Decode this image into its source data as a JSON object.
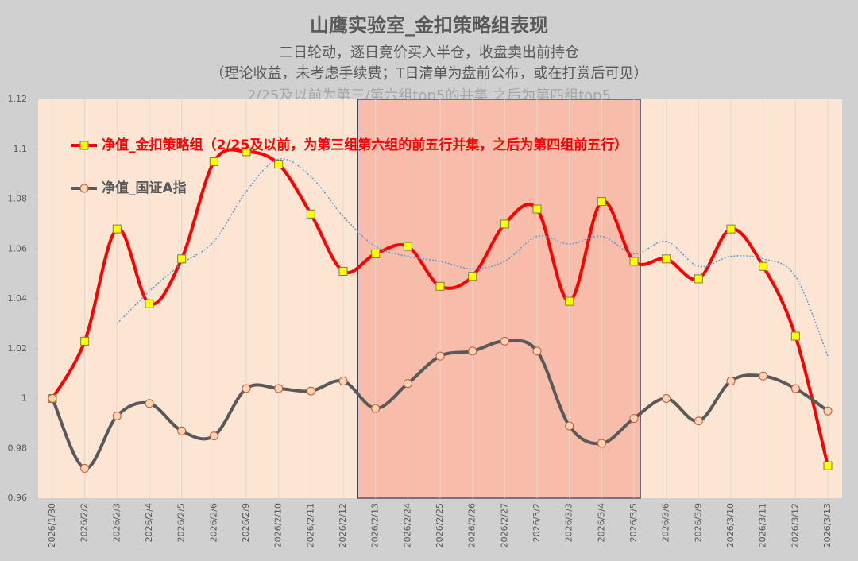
{
  "chart_data": {
    "type": "line",
    "title": "山鹰实验室_金扣策略组表现",
    "subtitle": [
      "二日轮动，逐日竞价买入半仓，收盘卖出前持仓",
      "（理论收益，未考虑手续费；T日清单为盘前公布，或在打赏后可见）",
      "2/25及以前为第三/第六组top5的并集 之后为第四组top5"
    ],
    "categories": [
      "2026/1/30",
      "2026/2/2",
      "2026/2/3",
      "2026/2/4",
      "2026/2/5",
      "2026/2/6",
      "2026/2/9",
      "2026/2/10",
      "2026/2/11",
      "2026/2/12",
      "2026/2/13",
      "2026/2/24",
      "2026/2/25",
      "2026/2/26",
      "2026/2/27",
      "2026/3/2",
      "2026/3/3",
      "2026/3/4",
      "2026/3/5",
      "2026/3/6",
      "2026/3/9",
      "2026/3/10",
      "2026/3/11",
      "2026/3/12",
      "2026/3/13"
    ],
    "series": [
      {
        "name": "净值_金扣策略组（2/25及以前，为第三组第六组的前五行并集，之后为第四组前五行）",
        "color": "#ff0000",
        "marker": "square",
        "values": [
          1.0,
          1.023,
          1.068,
          1.038,
          1.056,
          1.095,
          1.099,
          1.094,
          1.074,
          1.051,
          1.058,
          1.061,
          1.045,
          1.049,
          1.07,
          1.076,
          1.039,
          1.079,
          1.055,
          1.056,
          1.048,
          1.068,
          1.053,
          1.025,
          0.973
        ]
      },
      {
        "name": "净值_国证A指",
        "color": "#595959",
        "marker": "circle",
        "values": [
          1.0,
          0.972,
          0.993,
          0.998,
          0.987,
          0.985,
          1.004,
          1.004,
          1.003,
          1.007,
          0.996,
          1.006,
          1.017,
          1.019,
          1.023,
          1.019,
          0.989,
          0.982,
          0.992,
          1.0,
          0.991,
          1.007,
          1.009,
          1.004,
          0.995
        ]
      }
    ],
    "trend": {
      "color": "#5b9bd5",
      "values": [
        null,
        null,
        1.03,
        1.043,
        1.054,
        1.063,
        1.083,
        1.096,
        1.089,
        1.073,
        1.061,
        1.057,
        1.055,
        1.052,
        1.055,
        1.065,
        1.062,
        1.065,
        1.058,
        1.063,
        1.053,
        1.057,
        1.056,
        1.049,
        1.017
      ]
    },
    "highlight": {
      "from": 10,
      "to": 18,
      "color": "#f8bcaa"
    },
    "ylim": [
      0.96,
      1.12
    ],
    "yticks": [
      0.96,
      0.98,
      1,
      1.02,
      1.04,
      1.06,
      1.08,
      1.1,
      1.12
    ],
    "grid": "x",
    "legend": "upper left"
  }
}
